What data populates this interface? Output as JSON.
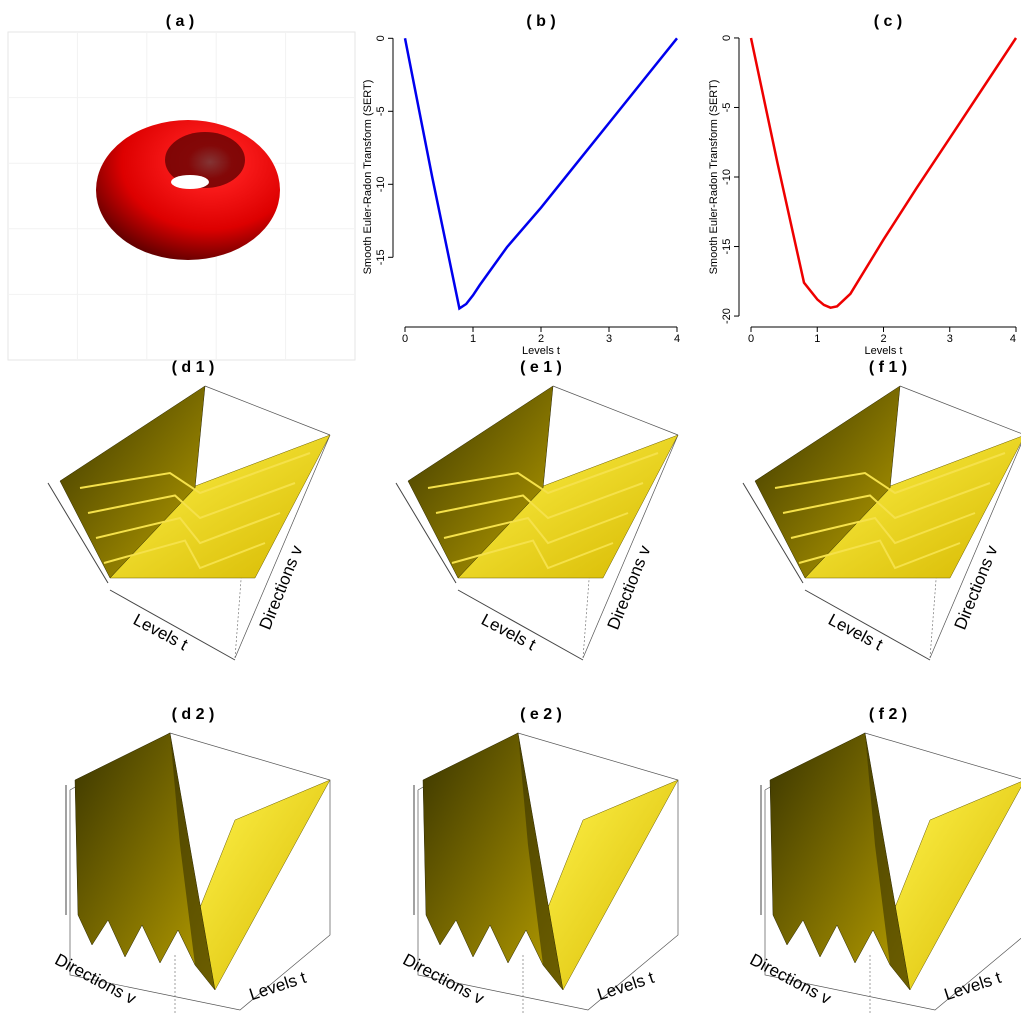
{
  "chart_data": [
    {
      "type": "render",
      "title": "( a )"
    },
    {
      "type": "line",
      "title": "( b )",
      "xlabel": "Levels t",
      "ylabel": "Smooth Euler-Radon Transform (SERT)",
      "color": "#0000ee",
      "x": [
        0,
        0.4,
        0.8,
        0.9,
        1.0,
        1.1,
        1.5,
        2,
        2.5,
        3,
        3.5,
        4
      ],
      "values": [
        0,
        -9.5,
        -18.5,
        -18.2,
        -17.6,
        -16.9,
        -14.3,
        -11.6,
        -8.7,
        -5.8,
        -2.9,
        0
      ],
      "xlim": [
        0,
        4
      ],
      "ylim": [
        -19.5,
        0.5
      ],
      "xticks": [
        0,
        1,
        2,
        3,
        4
      ],
      "yticks": [
        0,
        -5,
        -10,
        -15
      ]
    },
    {
      "type": "line",
      "title": "( c )",
      "xlabel": "Levels t",
      "ylabel": "Smooth Euler-Radon Transform (SERT)",
      "color": "#ee0000",
      "x": [
        0,
        0.4,
        0.8,
        1.0,
        1.1,
        1.2,
        1.3,
        1.5,
        2,
        2.5,
        3,
        3.5,
        4
      ],
      "values": [
        0,
        -9,
        -17.6,
        -18.8,
        -19.2,
        -19.4,
        -19.3,
        -18.4,
        -14.5,
        -10.8,
        -7.2,
        -3.6,
        0
      ],
      "xlim": [
        0,
        4
      ],
      "ylim": [
        -20.5,
        0.5
      ],
      "xticks": [
        0,
        1,
        2,
        3,
        4
      ],
      "yticks": [
        0,
        -5,
        -10,
        -15,
        -20
      ]
    },
    {
      "type": "surface",
      "variant": 1,
      "title": "( d 1 )",
      "xlabel": "Levels t",
      "ylabel": "Directions v"
    },
    {
      "type": "surface",
      "variant": 1,
      "title": "( e 1 )",
      "xlabel": "Levels t",
      "ylabel": "Directions v"
    },
    {
      "type": "surface",
      "variant": 1,
      "title": "( f 1 )",
      "xlabel": "Levels t",
      "ylabel": "Directions v"
    },
    {
      "type": "surface",
      "variant": 2,
      "title": "( d 2 )",
      "xlabel": "Levels t",
      "ylabel": "Directions v"
    },
    {
      "type": "surface",
      "variant": 2,
      "title": "( e 2 )",
      "xlabel": "Levels t",
      "ylabel": "Directions v"
    },
    {
      "type": "surface",
      "variant": 2,
      "title": "( f 2 )",
      "xlabel": "Levels t",
      "ylabel": "Directions v"
    }
  ]
}
